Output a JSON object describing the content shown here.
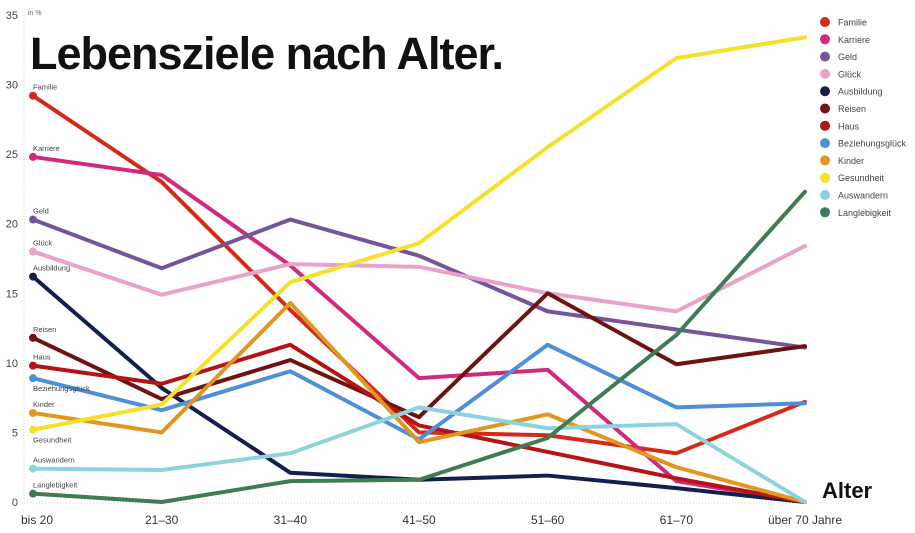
{
  "chart_data": {
    "type": "line",
    "title": "Lebensziele nach Alter.",
    "ylabel": "in %",
    "xlabel": "Alter",
    "ylim": [
      0,
      35
    ],
    "yticks": [
      0,
      5,
      10,
      15,
      20,
      25,
      30,
      35
    ],
    "categories": [
      "bis 20",
      "21–30",
      "31–40",
      "41–50",
      "51–60",
      "61–70",
      "über 70 Jahre"
    ],
    "grid": false,
    "legend": "top-right",
    "series": [
      {
        "name": "Familie",
        "color": "#d42a1a",
        "values": [
          29.2,
          23.0,
          13.8,
          5.0,
          4.8,
          3.5,
          7.2
        ]
      },
      {
        "name": "Karriere",
        "color": "#d12a7d",
        "values": [
          24.8,
          23.5,
          17.0,
          8.9,
          9.5,
          1.5,
          0.0
        ]
      },
      {
        "name": "Geld",
        "color": "#74559a",
        "values": [
          20.3,
          16.8,
          20.3,
          17.7,
          13.7,
          12.4,
          11.1
        ]
      },
      {
        "name": "Glück",
        "color": "#e8a3c8",
        "values": [
          18.0,
          14.9,
          17.1,
          16.9,
          15.0,
          13.7,
          18.4
        ]
      },
      {
        "name": "Ausbildung",
        "color": "#13204d",
        "values": [
          16.2,
          8.2,
          2.1,
          1.6,
          1.9,
          1.0,
          0.0
        ]
      },
      {
        "name": "Reisen",
        "color": "#6e1410",
        "values": [
          11.8,
          7.4,
          10.2,
          6.1,
          15.0,
          9.9,
          11.2
        ]
      },
      {
        "name": "Haus",
        "color": "#b51416",
        "values": [
          9.8,
          8.5,
          11.3,
          5.5,
          3.6,
          1.7,
          0.0
        ]
      },
      {
        "name": "Beziehungsglück",
        "color": "#4f8fd6",
        "values": [
          8.9,
          6.6,
          9.4,
          4.5,
          11.3,
          6.8,
          7.1
        ]
      },
      {
        "name": "Kinder",
        "color": "#e0961f",
        "values": [
          6.4,
          5.0,
          14.3,
          4.3,
          6.3,
          2.5,
          0.0
        ]
      },
      {
        "name": "Gesundheit",
        "color": "#f5e02a",
        "values": [
          5.2,
          7.0,
          15.8,
          18.6,
          25.5,
          31.9,
          33.4
        ]
      },
      {
        "name": "Auswandern",
        "color": "#8dd3de",
        "values": [
          2.4,
          2.3,
          3.5,
          6.8,
          5.3,
          5.6,
          0.0
        ]
      },
      {
        "name": "Langlebigkeit",
        "color": "#3f7b55",
        "values": [
          0.6,
          0.0,
          1.5,
          1.6,
          4.6,
          12.0,
          22.3
        ]
      }
    ]
  }
}
